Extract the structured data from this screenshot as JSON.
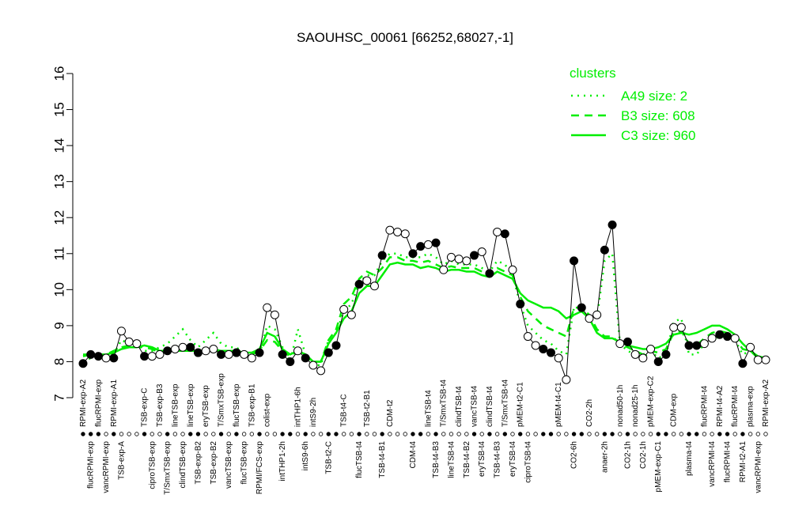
{
  "chart_data": {
    "type": "line",
    "title": "SAOUHSC_00061 [66252,68027,-1]",
    "ylim": [
      7,
      16
    ],
    "yticks": [
      7,
      8,
      9,
      10,
      11,
      12,
      13,
      14,
      15,
      16
    ],
    "legend_title": "clusters",
    "legend_position": "top-right",
    "categories": [
      "RPMI-exp-A2",
      "flucRPMI-exp",
      "flucRPMI-exp",
      "vancRPMI-exp",
      "RPMI-exp-A1",
      "TSB-exp-A",
      null,
      null,
      "TSB-exp-C",
      "ciproTSB-exp",
      "TSB-exp-B3",
      "T/SmxTSB-exp",
      "lineTSB-exp",
      "clindTSB-exp",
      "lineTSB-exp",
      "TSB-exp-B2",
      "eryTSB-exp",
      "TSB-exp-B2",
      "T/SmxTSB-exp",
      "vancTSB-exp",
      "flucTSB-exp",
      "flucTSB-exp",
      "TSB-exp-B1",
      "RPMI/FCS-exp",
      "colist-exp",
      null,
      "intTHP1-2h",
      null,
      "intTHP1-6h",
      "intS9-6h",
      "intS9-2h",
      null,
      "TSB-t2-C",
      null,
      "TSB-t4-C",
      null,
      "flucTSB-t4",
      "TSB-t2-B1",
      null,
      "TSB-t4-B1",
      "CDM-t2",
      null,
      null,
      "CDM-t4",
      null,
      "lineTSB-t4",
      "TSB-t4-B3",
      "T/SmxTSB-t4",
      "lineTSB-t4",
      "clindTSB-t4",
      "TSB-t4-B2",
      "vancTSB-t4",
      "eryTSB-t4",
      "clindTSB-t4",
      "TSB-t4-B3",
      "T/SmxTSB-t4",
      "eryTSB-t4",
      "pMEM-t2-C1",
      "ciproTSB-t4",
      null,
      null,
      null,
      "pMEM-t4-C1",
      null,
      "CO2-6h",
      null,
      "CO2-2h",
      null,
      "anaer-2h",
      null,
      "nonad50-1h",
      "CO2-1h",
      "nonad25-1h",
      "CO2-1h",
      "pMEM-exp-C2",
      "pMEM-exp-C1",
      null,
      "CDM-exp",
      null,
      "plasma-t4",
      null,
      "flucRPMI-t4",
      "vancRPMI-t4",
      "RPMI-t4-A2",
      "flucRPMI-t4",
      "flucRPMI-t4",
      "RPMI-t2-A1",
      "plasma-exp",
      "vancRPMI-exp",
      "RPMI-exp-A2"
    ],
    "points": {
      "color": "#000000",
      "values": [
        7.95,
        8.2,
        8.15,
        8.1,
        8.1,
        8.85,
        8.55,
        8.5,
        8.15,
        8.15,
        8.2,
        8.3,
        8.35,
        8.4,
        8.4,
        8.25,
        8.3,
        8.35,
        8.2,
        8.2,
        8.25,
        8.2,
        8.1,
        8.25,
        9.5,
        9.3,
        8.2,
        8.0,
        8.3,
        8.1,
        7.9,
        7.75,
        8.25,
        8.45,
        9.45,
        9.3,
        10.15,
        10.25,
        10.1,
        10.95,
        11.65,
        11.6,
        11.55,
        11.0,
        11.2,
        11.25,
        11.3,
        10.55,
        10.9,
        10.85,
        10.8,
        10.95,
        11.05,
        10.45,
        11.6,
        11.55,
        10.55,
        9.6,
        8.7,
        8.45,
        8.35,
        8.25,
        8.1,
        7.5,
        10.8,
        9.5,
        9.2,
        9.3,
        11.1,
        11.8,
        8.5,
        8.55,
        8.2,
        8.1,
        8.35,
        8.0,
        8.2,
        8.95,
        8.95,
        8.45,
        8.45,
        8.5,
        8.65,
        8.75,
        8.7,
        8.65,
        7.95,
        8.4,
        8.05,
        8.05
      ],
      "filled": [
        true,
        true,
        true,
        false,
        true,
        false,
        false,
        false,
        true,
        false,
        false,
        true,
        false,
        false,
        true,
        true,
        false,
        false,
        true,
        false,
        true,
        false,
        false,
        true,
        false,
        false,
        true,
        true,
        false,
        true,
        false,
        false,
        true,
        true,
        false,
        false,
        true,
        false,
        false,
        true,
        false,
        false,
        false,
        true,
        true,
        false,
        true,
        false,
        false,
        false,
        false,
        true,
        false,
        true,
        false,
        true,
        false,
        true,
        false,
        false,
        true,
        true,
        false,
        false,
        true,
        true,
        false,
        false,
        true,
        true,
        false,
        true,
        false,
        false,
        false,
        true,
        true,
        false,
        false,
        true,
        true,
        false,
        false,
        true,
        true,
        false,
        true,
        false,
        false,
        false
      ]
    },
    "series": [
      {
        "name": "A49 size: 2",
        "color": "#00ee00",
        "dash": "dotted",
        "values": [
          8.0,
          8.1,
          8.1,
          8.1,
          8.2,
          8.6,
          8.5,
          8.5,
          8.3,
          8.3,
          8.4,
          8.5,
          8.7,
          8.9,
          8.6,
          8.4,
          8.6,
          8.8,
          8.5,
          8.4,
          8.4,
          8.2,
          8.15,
          8.2,
          9.0,
          8.9,
          8.4,
          8.0,
          8.9,
          8.2,
          7.9,
          7.9,
          8.6,
          8.8,
          9.4,
          9.6,
          10.2,
          10.4,
          10.4,
          10.8,
          11.0,
          11.0,
          10.9,
          10.9,
          10.9,
          11.0,
          10.9,
          10.7,
          10.8,
          10.7,
          10.7,
          10.7,
          10.6,
          10.5,
          10.8,
          10.7,
          10.4,
          9.6,
          9.0,
          8.8,
          8.6,
          8.5,
          8.3,
          8.2,
          9.5,
          9.5,
          9.2,
          9.2,
          10.8,
          11.0,
          8.5,
          8.3,
          8.2,
          8.1,
          8.3,
          8.1,
          8.2,
          9.1,
          9.2,
          8.2,
          8.2,
          8.5,
          8.6,
          8.7,
          8.7,
          8.6,
          8.2,
          8.3,
          8.1,
          8.1
        ]
      },
      {
        "name": "B3 size: 608",
        "color": "#00ee00",
        "dash": "dashed",
        "values": [
          8.15,
          8.2,
          8.2,
          8.2,
          8.3,
          8.4,
          8.45,
          8.45,
          8.4,
          8.35,
          8.25,
          8.3,
          8.35,
          8.4,
          8.35,
          8.3,
          8.3,
          8.35,
          8.3,
          8.25,
          8.25,
          8.2,
          8.2,
          8.3,
          8.6,
          8.55,
          8.3,
          8.15,
          8.3,
          8.15,
          8.0,
          8.0,
          8.6,
          8.9,
          9.6,
          9.8,
          10.3,
          10.5,
          10.4,
          10.6,
          10.9,
          10.9,
          10.8,
          10.8,
          10.75,
          10.8,
          10.7,
          10.6,
          10.65,
          10.6,
          10.6,
          10.6,
          10.5,
          10.4,
          10.6,
          10.5,
          10.4,
          9.8,
          9.4,
          9.2,
          9.0,
          8.9,
          8.8,
          8.7,
          9.5,
          9.5,
          9.3,
          8.9,
          8.7,
          8.7,
          8.5,
          8.4,
          8.3,
          8.2,
          8.3,
          8.25,
          8.35,
          8.8,
          8.85,
          8.5,
          8.45,
          8.65,
          8.8,
          8.85,
          8.8,
          8.65,
          8.35,
          8.3,
          8.1,
          8.05
        ]
      },
      {
        "name": "C3 size: 960",
        "color": "#00ee00",
        "dash": "solid",
        "values": [
          8.2,
          8.2,
          8.2,
          8.2,
          8.25,
          8.35,
          8.4,
          8.4,
          8.45,
          8.4,
          8.3,
          8.3,
          8.3,
          8.3,
          8.3,
          8.3,
          8.3,
          8.3,
          8.3,
          8.3,
          8.3,
          8.25,
          8.25,
          8.35,
          8.8,
          8.7,
          8.35,
          8.2,
          8.3,
          8.2,
          8.0,
          8.0,
          8.5,
          8.8,
          9.2,
          9.4,
          9.9,
          10.1,
          10.1,
          10.4,
          10.7,
          10.75,
          10.7,
          10.7,
          10.6,
          10.65,
          10.6,
          10.5,
          10.55,
          10.55,
          10.5,
          10.5,
          10.4,
          10.35,
          10.5,
          10.4,
          10.3,
          9.9,
          9.7,
          9.6,
          9.5,
          9.5,
          9.4,
          9.2,
          9.3,
          9.4,
          9.2,
          8.8,
          8.65,
          8.65,
          8.55,
          8.45,
          8.4,
          8.35,
          8.35,
          8.4,
          8.5,
          8.75,
          8.8,
          8.75,
          8.8,
          8.9,
          9.0,
          9.0,
          8.9,
          8.75,
          8.5,
          8.3,
          8.15,
          8.1
        ]
      }
    ]
  }
}
